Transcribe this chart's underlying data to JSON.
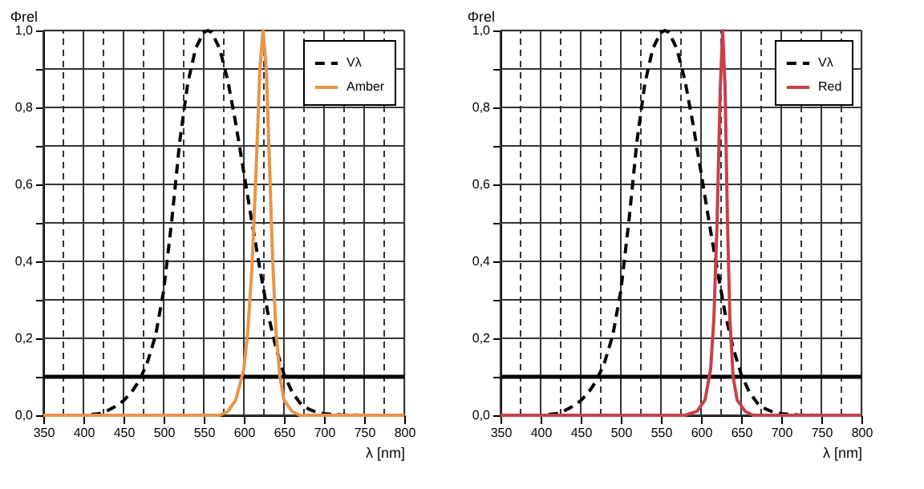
{
  "chart_data": [
    {
      "type": "line",
      "xlabel": "λ [nm]",
      "ylabel": "Φrel",
      "legend": "top right",
      "grid": true,
      "xlim": [
        350,
        800
      ],
      "ylim": [
        0,
        1
      ],
      "xticks": [
        350,
        {
          "value": 375,
          "label": null
        },
        400,
        {
          "value": 425,
          "label": null
        },
        450,
        {
          "value": 475,
          "label": null
        },
        500,
        {
          "value": 525,
          "label": null
        },
        550,
        {
          "value": 575,
          "label": null
        },
        600,
        {
          "value": 625,
          "label": null
        },
        650,
        {
          "value": 675,
          "label": null
        },
        700,
        {
          "value": 725,
          "label": null
        },
        750,
        {
          "value": 775,
          "label": null
        },
        800
      ],
      "yticks": [
        {
          "value": 0,
          "label": "0,0"
        },
        {
          "value": 0.1,
          "label": null
        },
        {
          "value": 0.2,
          "label": "0,2"
        },
        {
          "value": 0.3,
          "label": null
        },
        {
          "value": 0.4,
          "label": "0,4"
        },
        {
          "value": 0.5,
          "label": null
        },
        {
          "value": 0.6,
          "label": "0,6"
        },
        {
          "value": 0.7,
          "label": null
        },
        {
          "value": 0.8,
          "label": "0,8"
        },
        {
          "value": 0.9,
          "label": null
        },
        {
          "value": 1,
          "label": "1,0"
        }
      ],
      "ref_lines": [
        {
          "axis": "y",
          "value": 0.1,
          "color": "#000000"
        }
      ],
      "series": [
        {
          "name": "Vλ",
          "color": "#000000",
          "line_style": "dashed",
          "x": [
            350,
            400,
            420,
            430,
            440,
            450,
            460,
            470,
            480,
            490,
            500,
            510,
            520,
            530,
            540,
            550,
            555,
            560,
            570,
            580,
            590,
            600,
            610,
            620,
            630,
            640,
            650,
            660,
            670,
            680,
            690,
            700,
            720,
            750,
            800
          ],
          "values": [
            0,
            0,
            0.004,
            0.012,
            0.023,
            0.038,
            0.06,
            0.091,
            0.139,
            0.208,
            0.323,
            0.503,
            0.71,
            0.862,
            0.954,
            0.995,
            1.0,
            0.995,
            0.952,
            0.87,
            0.757,
            0.631,
            0.503,
            0.381,
            0.265,
            0.175,
            0.107,
            0.061,
            0.032,
            0.017,
            0.008,
            0.004,
            0.001,
            0,
            0
          ]
        },
        {
          "name": "Amber",
          "color": "#e8954a",
          "line_style": "solid",
          "x": [
            350,
            570,
            580,
            590,
            600,
            605,
            610,
            615,
            620,
            624,
            628,
            632,
            636,
            640,
            645,
            650,
            660,
            670,
            800
          ],
          "values": [
            0,
            0,
            0.01,
            0.04,
            0.12,
            0.22,
            0.38,
            0.62,
            0.9,
            1.0,
            0.9,
            0.65,
            0.4,
            0.22,
            0.1,
            0.04,
            0.01,
            0,
            0
          ]
        }
      ]
    },
    {
      "type": "line",
      "xlabel": "λ [nm]",
      "ylabel": "Φrel",
      "legend": "top right",
      "grid": true,
      "xlim": [
        350,
        800
      ],
      "ylim": [
        0,
        1
      ],
      "xticks": [
        350,
        {
          "value": 375,
          "label": null
        },
        400,
        {
          "value": 425,
          "label": null
        },
        450,
        {
          "value": 475,
          "label": null
        },
        500,
        {
          "value": 525,
          "label": null
        },
        550,
        {
          "value": 575,
          "label": null
        },
        600,
        {
          "value": 625,
          "label": null
        },
        650,
        {
          "value": 675,
          "label": null
        },
        700,
        {
          "value": 725,
          "label": null
        },
        750,
        {
          "value": 775,
          "label": null
        },
        800
      ],
      "yticks": [
        {
          "value": 0,
          "label": "0,0"
        },
        {
          "value": 0.1,
          "label": null
        },
        {
          "value": 0.2,
          "label": "0,2"
        },
        {
          "value": 0.3,
          "label": null
        },
        {
          "value": 0.4,
          "label": "0,4"
        },
        {
          "value": 0.5,
          "label": null
        },
        {
          "value": 0.6,
          "label": "0,6"
        },
        {
          "value": 0.7,
          "label": null
        },
        {
          "value": 0.8,
          "label": "0,8"
        },
        {
          "value": 0.9,
          "label": null
        },
        {
          "value": 1,
          "label": "1,0"
        }
      ],
      "ref_lines": [
        {
          "axis": "y",
          "value": 0.1,
          "color": "#000000"
        }
      ],
      "series": [
        {
          "name": "Vλ",
          "color": "#000000",
          "line_style": "dashed",
          "x": [
            350,
            400,
            420,
            430,
            440,
            450,
            460,
            470,
            480,
            490,
            500,
            510,
            520,
            530,
            540,
            550,
            555,
            560,
            570,
            580,
            590,
            600,
            610,
            620,
            630,
            640,
            650,
            660,
            670,
            680,
            690,
            700,
            720,
            750,
            800
          ],
          "values": [
            0,
            0,
            0.004,
            0.012,
            0.023,
            0.038,
            0.06,
            0.091,
            0.139,
            0.208,
            0.323,
            0.503,
            0.71,
            0.862,
            0.954,
            0.995,
            1.0,
            0.995,
            0.952,
            0.87,
            0.757,
            0.631,
            0.503,
            0.381,
            0.265,
            0.175,
            0.107,
            0.061,
            0.032,
            0.017,
            0.008,
            0.004,
            0.001,
            0,
            0
          ]
        },
        {
          "name": "Red",
          "color": "#c8404a",
          "line_style": "solid",
          "x": [
            350,
            580,
            595,
            605,
            612,
            616,
            620,
            624,
            627,
            630,
            633,
            636,
            640,
            645,
            655,
            665,
            800
          ],
          "values": [
            0,
            0,
            0.01,
            0.04,
            0.12,
            0.25,
            0.5,
            0.85,
            1.0,
            0.85,
            0.5,
            0.25,
            0.1,
            0.04,
            0.01,
            0,
            0
          ]
        }
      ]
    }
  ]
}
